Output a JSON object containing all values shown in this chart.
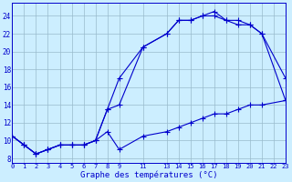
{
  "title": "Graphe des températures (°C)",
  "bg_color": "#cceeff",
  "line_color": "#0000cc",
  "grid_color": "#99bbcc",
  "hours_line1": [
    0,
    1,
    2,
    3,
    4,
    5,
    6,
    7,
    8,
    9,
    11,
    13,
    14,
    15,
    16,
    17,
    18,
    19,
    20,
    21,
    23
  ],
  "vals_line1": [
    10.5,
    9.5,
    8.5,
    9.0,
    9.5,
    9.5,
    9.5,
    10.0,
    13.5,
    17.0,
    20.5,
    22.0,
    23.5,
    23.5,
    24.0,
    24.5,
    23.5,
    23.0,
    23.0,
    22.0,
    17.0
  ],
  "hours_line2": [
    0,
    1,
    2,
    3,
    4,
    5,
    6,
    7,
    8,
    9,
    11,
    13,
    14,
    15,
    16,
    17,
    18,
    19,
    20,
    21,
    23
  ],
  "vals_line2": [
    10.5,
    9.5,
    8.5,
    9.0,
    9.5,
    9.5,
    9.5,
    10.0,
    13.5,
    14.0,
    20.5,
    22.0,
    23.5,
    23.5,
    24.0,
    24.0,
    23.5,
    23.5,
    23.0,
    22.0,
    14.5
  ],
  "hours_line3": [
    0,
    1,
    2,
    3,
    4,
    5,
    6,
    7,
    8,
    9,
    11,
    13,
    14,
    15,
    16,
    17,
    18,
    19,
    20,
    21,
    23
  ],
  "vals_line3": [
    10.5,
    9.5,
    8.5,
    9.0,
    9.5,
    9.5,
    9.5,
    10.0,
    11.0,
    9.0,
    10.5,
    11.0,
    11.5,
    12.0,
    12.5,
    13.0,
    13.0,
    13.5,
    14.0,
    14.0,
    14.5
  ],
  "xlim": [
    0,
    23
  ],
  "ylim": [
    7.5,
    25.5
  ],
  "yticks": [
    8,
    10,
    12,
    14,
    16,
    18,
    20,
    22,
    24
  ],
  "xticks": [
    0,
    1,
    2,
    3,
    4,
    5,
    6,
    7,
    8,
    9,
    11,
    13,
    14,
    15,
    16,
    17,
    18,
    19,
    20,
    21,
    22,
    23
  ],
  "xticklabels": [
    "0",
    "1",
    "2",
    "3",
    "4",
    "5",
    "6",
    "7",
    "8",
    "9",
    "11",
    "13",
    "14",
    "15",
    "16",
    "17",
    "18",
    "19",
    "20",
    "21",
    "22",
    "23"
  ]
}
